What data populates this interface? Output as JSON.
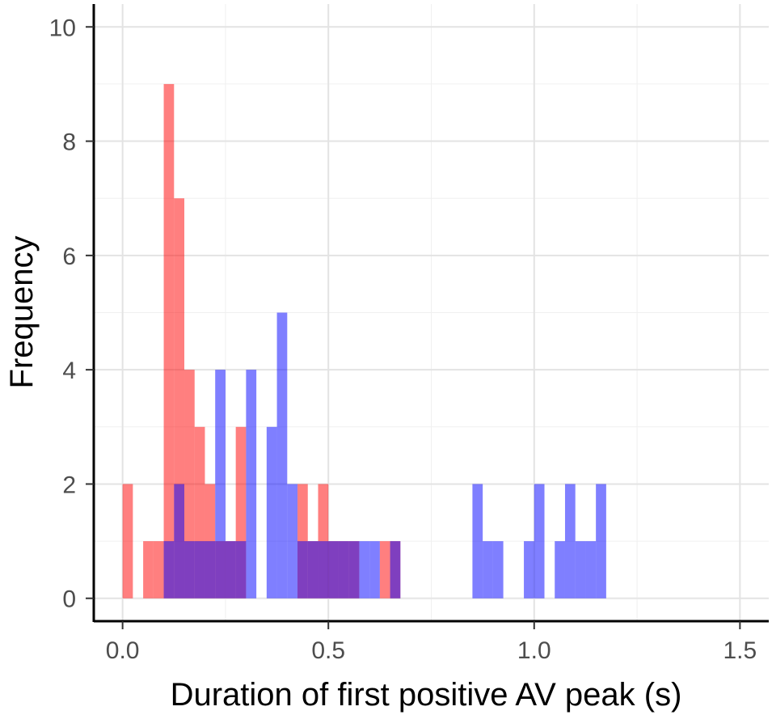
{
  "chart_data": {
    "type": "bar",
    "subtype": "overlaid-histogram",
    "title": "",
    "xlabel": "Duration of first positive AV peak (s)",
    "ylabel": "Frequency",
    "xlim": [
      -0.07,
      1.57
    ],
    "ylim": [
      -0.4,
      10.4
    ],
    "bin_width": 0.025,
    "first_bin_start": 0.0,
    "x_ticks": [
      0.0,
      0.5,
      1.0,
      1.5
    ],
    "x_tick_labels": [
      "0.0",
      "0.5",
      "1.0",
      "1.5"
    ],
    "y_ticks": [
      0,
      2,
      4,
      6,
      8,
      10
    ],
    "y_tick_labels": [
      "0",
      "2",
      "4",
      "6",
      "8",
      "10"
    ],
    "grid": true,
    "series": [
      {
        "name": "red",
        "color": "#ff0000",
        "opacity": 0.5,
        "counts": [
          2,
          0,
          1,
          1,
          9,
          7,
          4,
          3,
          2,
          1,
          1,
          3,
          0,
          0,
          0,
          0,
          0,
          2,
          1,
          2,
          1,
          1,
          1,
          0,
          0,
          1,
          1,
          0,
          0,
          0,
          0,
          0,
          0,
          0,
          0,
          0,
          0,
          0,
          0,
          0,
          0,
          0,
          0,
          0,
          0,
          0,
          0,
          0,
          0,
          0,
          0,
          0,
          0,
          0,
          0,
          0,
          0,
          0,
          0
        ]
      },
      {
        "name": "blue",
        "color": "#0000ff",
        "opacity": 0.5,
        "counts": [
          0,
          0,
          0,
          0,
          1,
          2,
          1,
          1,
          1,
          4,
          1,
          1,
          4,
          0,
          3,
          5,
          2,
          1,
          1,
          1,
          1,
          1,
          1,
          1,
          1,
          0,
          1,
          0,
          0,
          0,
          0,
          0,
          0,
          0,
          2,
          1,
          1,
          0,
          0,
          1,
          2,
          0,
          1,
          2,
          1,
          1,
          2,
          0,
          0,
          0,
          0,
          0,
          0,
          0,
          0,
          0,
          0,
          0,
          0
        ]
      }
    ]
  }
}
